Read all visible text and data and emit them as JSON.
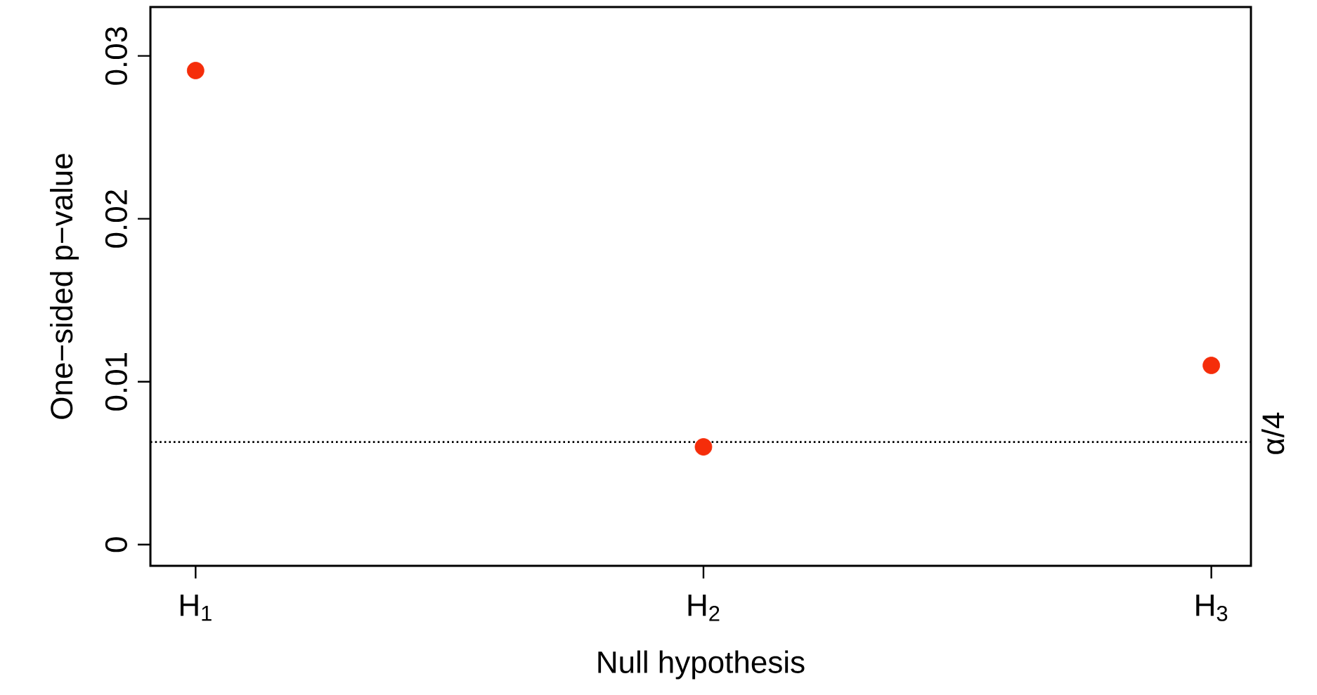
{
  "chart_data": {
    "type": "scatter",
    "xlabel": "Null hypothesis",
    "ylabel": "One−sided p−value",
    "categories": [
      "H$_{1}$",
      "H$_{2}$",
      "H$_{3}$"
    ],
    "series": [
      {
        "color": "#f52d0a",
        "values": [
          0.0291,
          0.006,
          0.011
        ]
      }
    ],
    "marker": "circle",
    "ylim": [
      -0.0013,
      0.033
    ],
    "yticks": [
      0,
      0.01,
      0.02,
      0.03
    ],
    "ref_lines": [
      {
        "axis": "y",
        "value": 0.0063,
        "label": "α/4",
        "line_style": "dotted"
      }
    ],
    "grid": false
  }
}
